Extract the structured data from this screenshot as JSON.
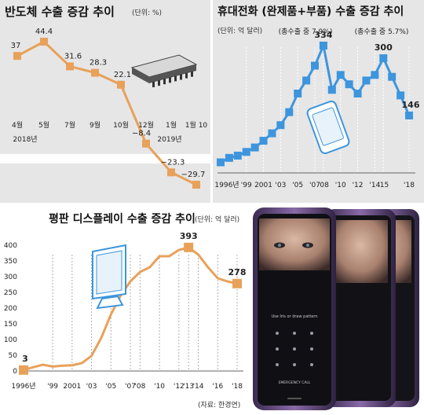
{
  "chart_data": [
    {
      "type": "line",
      "title": "반도체 수출 증감 추이",
      "unit": "(단위: %)",
      "categories": [
        "4월",
        "5월",
        "7월",
        "9월",
        "10월",
        "12월",
        "1월",
        "1월 10"
      ],
      "year_labels": [
        "2018년",
        "2019년"
      ],
      "values": [
        37,
        44.4,
        31.6,
        28.3,
        22.1,
        -8.4,
        -23.3,
        -29.7
      ],
      "value_labels": [
        "37",
        "44.4",
        "31.6",
        "28.3",
        "22.1",
        "−8.4",
        "−23.3",
        "−29.7"
      ],
      "ylim": [
        -35,
        50
      ],
      "grid": false,
      "colors": {
        "line": "#e8a15a",
        "marker": "#e8a15a",
        "background": "#e6e6e6",
        "band": "#ffffff"
      }
    },
    {
      "type": "line",
      "title": "휴대전화 (완제품+부품) 수출 증감 추이",
      "unit": "(단위: 억 달러)",
      "x": [
        1996,
        1997,
        1998,
        1999,
        2000,
        2001,
        2002,
        2003,
        2004,
        2005,
        2006,
        2007,
        2008,
        2009,
        2010,
        2011,
        2012,
        2013,
        2014,
        2015,
        2016,
        2017,
        2018
      ],
      "tick_labels": [
        "1996년",
        "'99",
        "2001",
        "'03",
        "'05",
        "'07",
        "'08",
        "'10",
        "'12",
        "'14",
        "'15",
        "'18"
      ],
      "values": [
        20,
        32,
        38,
        48,
        60,
        78,
        98,
        120,
        155,
        205,
        240,
        280,
        334,
        215,
        255,
        230,
        205,
        240,
        255,
        300,
        250,
        200,
        146
      ],
      "value_labels": {
        "2008": "334",
        "2015": "300",
        "2018": "146"
      },
      "annotations": [
        "(총수출 중 7.9%)",
        "(총수출 중 5.7%)"
      ],
      "ylim": [
        0,
        360
      ],
      "grid": true,
      "colors": {
        "line": "#3d95dd",
        "marker": "#3d95dd",
        "background": "#e6e6e6"
      }
    },
    {
      "type": "line",
      "title": "평판 디스플레이 수출 증감 추이",
      "unit": "(단위: 억 달러)",
      "x": [
        1996,
        1997,
        1998,
        1999,
        2000,
        2001,
        2002,
        2003,
        2004,
        2005,
        2006,
        2007,
        2008,
        2009,
        2010,
        2011,
        2012,
        2013,
        2014,
        2015,
        2016,
        2017,
        2018
      ],
      "tick_labels": [
        "1996년",
        "'99",
        "2001",
        "'03",
        "'05",
        "'07",
        "'08",
        "'10",
        "'12",
        "'13",
        "'14",
        "'16",
        "'18"
      ],
      "values": [
        3,
        12,
        20,
        14,
        17,
        18,
        25,
        48,
        105,
        180,
        240,
        285,
        315,
        330,
        365,
        365,
        385,
        393,
        370,
        330,
        295,
        285,
        278
      ],
      "value_labels": {
        "1996": "3",
        "2013": "393",
        "2018": "278"
      },
      "yticks": [
        0,
        50,
        100,
        150,
        200,
        250,
        300,
        350,
        400
      ],
      "ylim": [
        0,
        420
      ],
      "grid": true,
      "source": "(자료: 한경연)",
      "colors": {
        "line": "#e8a15a",
        "marker": "#e8a15a",
        "area": "#ffffff"
      }
    }
  ],
  "phone_screen": {
    "lock_text": "Use Iris or draw pattern",
    "emergency_label": "EMERGENCY CALL"
  }
}
